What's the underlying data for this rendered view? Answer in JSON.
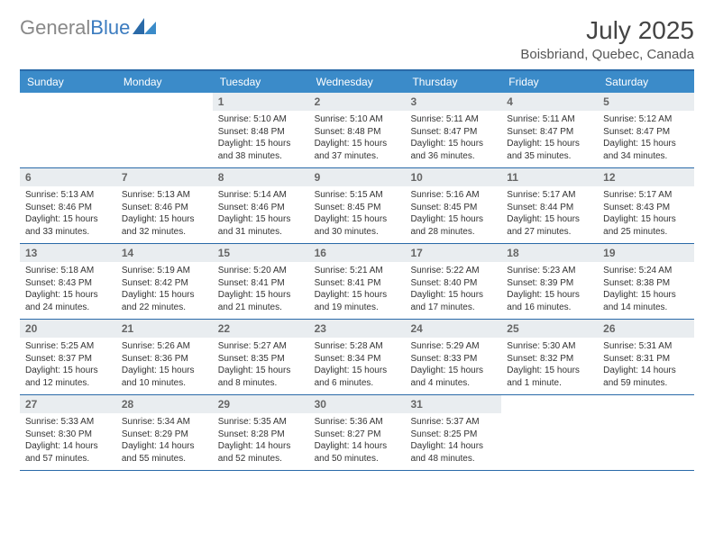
{
  "brand": {
    "part1": "General",
    "part2": "Blue"
  },
  "title": "July 2025",
  "location": "Boisbriand, Quebec, Canada",
  "colors": {
    "headerBar": "#3b8bc9",
    "border": "#2a6aa8",
    "dayBg": "#e9edf0",
    "text": "#333"
  },
  "dayNames": [
    "Sunday",
    "Monday",
    "Tuesday",
    "Wednesday",
    "Thursday",
    "Friday",
    "Saturday"
  ],
  "weeks": [
    [
      {
        "n": "",
        "sr": "",
        "ss": "",
        "dl": ""
      },
      {
        "n": "",
        "sr": "",
        "ss": "",
        "dl": ""
      },
      {
        "n": "1",
        "sr": "Sunrise: 5:10 AM",
        "ss": "Sunset: 8:48 PM",
        "dl": "Daylight: 15 hours and 38 minutes."
      },
      {
        "n": "2",
        "sr": "Sunrise: 5:10 AM",
        "ss": "Sunset: 8:48 PM",
        "dl": "Daylight: 15 hours and 37 minutes."
      },
      {
        "n": "3",
        "sr": "Sunrise: 5:11 AM",
        "ss": "Sunset: 8:47 PM",
        "dl": "Daylight: 15 hours and 36 minutes."
      },
      {
        "n": "4",
        "sr": "Sunrise: 5:11 AM",
        "ss": "Sunset: 8:47 PM",
        "dl": "Daylight: 15 hours and 35 minutes."
      },
      {
        "n": "5",
        "sr": "Sunrise: 5:12 AM",
        "ss": "Sunset: 8:47 PM",
        "dl": "Daylight: 15 hours and 34 minutes."
      }
    ],
    [
      {
        "n": "6",
        "sr": "Sunrise: 5:13 AM",
        "ss": "Sunset: 8:46 PM",
        "dl": "Daylight: 15 hours and 33 minutes."
      },
      {
        "n": "7",
        "sr": "Sunrise: 5:13 AM",
        "ss": "Sunset: 8:46 PM",
        "dl": "Daylight: 15 hours and 32 minutes."
      },
      {
        "n": "8",
        "sr": "Sunrise: 5:14 AM",
        "ss": "Sunset: 8:46 PM",
        "dl": "Daylight: 15 hours and 31 minutes."
      },
      {
        "n": "9",
        "sr": "Sunrise: 5:15 AM",
        "ss": "Sunset: 8:45 PM",
        "dl": "Daylight: 15 hours and 30 minutes."
      },
      {
        "n": "10",
        "sr": "Sunrise: 5:16 AM",
        "ss": "Sunset: 8:45 PM",
        "dl": "Daylight: 15 hours and 28 minutes."
      },
      {
        "n": "11",
        "sr": "Sunrise: 5:17 AM",
        "ss": "Sunset: 8:44 PM",
        "dl": "Daylight: 15 hours and 27 minutes."
      },
      {
        "n": "12",
        "sr": "Sunrise: 5:17 AM",
        "ss": "Sunset: 8:43 PM",
        "dl": "Daylight: 15 hours and 25 minutes."
      }
    ],
    [
      {
        "n": "13",
        "sr": "Sunrise: 5:18 AM",
        "ss": "Sunset: 8:43 PM",
        "dl": "Daylight: 15 hours and 24 minutes."
      },
      {
        "n": "14",
        "sr": "Sunrise: 5:19 AM",
        "ss": "Sunset: 8:42 PM",
        "dl": "Daylight: 15 hours and 22 minutes."
      },
      {
        "n": "15",
        "sr": "Sunrise: 5:20 AM",
        "ss": "Sunset: 8:41 PM",
        "dl": "Daylight: 15 hours and 21 minutes."
      },
      {
        "n": "16",
        "sr": "Sunrise: 5:21 AM",
        "ss": "Sunset: 8:41 PM",
        "dl": "Daylight: 15 hours and 19 minutes."
      },
      {
        "n": "17",
        "sr": "Sunrise: 5:22 AM",
        "ss": "Sunset: 8:40 PM",
        "dl": "Daylight: 15 hours and 17 minutes."
      },
      {
        "n": "18",
        "sr": "Sunrise: 5:23 AM",
        "ss": "Sunset: 8:39 PM",
        "dl": "Daylight: 15 hours and 16 minutes."
      },
      {
        "n": "19",
        "sr": "Sunrise: 5:24 AM",
        "ss": "Sunset: 8:38 PM",
        "dl": "Daylight: 15 hours and 14 minutes."
      }
    ],
    [
      {
        "n": "20",
        "sr": "Sunrise: 5:25 AM",
        "ss": "Sunset: 8:37 PM",
        "dl": "Daylight: 15 hours and 12 minutes."
      },
      {
        "n": "21",
        "sr": "Sunrise: 5:26 AM",
        "ss": "Sunset: 8:36 PM",
        "dl": "Daylight: 15 hours and 10 minutes."
      },
      {
        "n": "22",
        "sr": "Sunrise: 5:27 AM",
        "ss": "Sunset: 8:35 PM",
        "dl": "Daylight: 15 hours and 8 minutes."
      },
      {
        "n": "23",
        "sr": "Sunrise: 5:28 AM",
        "ss": "Sunset: 8:34 PM",
        "dl": "Daylight: 15 hours and 6 minutes."
      },
      {
        "n": "24",
        "sr": "Sunrise: 5:29 AM",
        "ss": "Sunset: 8:33 PM",
        "dl": "Daylight: 15 hours and 4 minutes."
      },
      {
        "n": "25",
        "sr": "Sunrise: 5:30 AM",
        "ss": "Sunset: 8:32 PM",
        "dl": "Daylight: 15 hours and 1 minute."
      },
      {
        "n": "26",
        "sr": "Sunrise: 5:31 AM",
        "ss": "Sunset: 8:31 PM",
        "dl": "Daylight: 14 hours and 59 minutes."
      }
    ],
    [
      {
        "n": "27",
        "sr": "Sunrise: 5:33 AM",
        "ss": "Sunset: 8:30 PM",
        "dl": "Daylight: 14 hours and 57 minutes."
      },
      {
        "n": "28",
        "sr": "Sunrise: 5:34 AM",
        "ss": "Sunset: 8:29 PM",
        "dl": "Daylight: 14 hours and 55 minutes."
      },
      {
        "n": "29",
        "sr": "Sunrise: 5:35 AM",
        "ss": "Sunset: 8:28 PM",
        "dl": "Daylight: 14 hours and 52 minutes."
      },
      {
        "n": "30",
        "sr": "Sunrise: 5:36 AM",
        "ss": "Sunset: 8:27 PM",
        "dl": "Daylight: 14 hours and 50 minutes."
      },
      {
        "n": "31",
        "sr": "Sunrise: 5:37 AM",
        "ss": "Sunset: 8:25 PM",
        "dl": "Daylight: 14 hours and 48 minutes."
      },
      {
        "n": "",
        "sr": "",
        "ss": "",
        "dl": ""
      },
      {
        "n": "",
        "sr": "",
        "ss": "",
        "dl": ""
      }
    ]
  ]
}
